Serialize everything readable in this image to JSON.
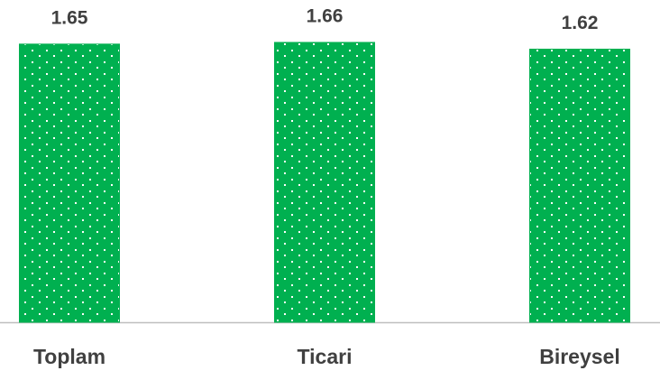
{
  "chart_data": {
    "type": "bar",
    "categories": [
      "Toplam",
      "Ticari",
      "Bireysel"
    ],
    "values": [
      1.65,
      1.66,
      1.62
    ],
    "color": "#00b050"
  }
}
